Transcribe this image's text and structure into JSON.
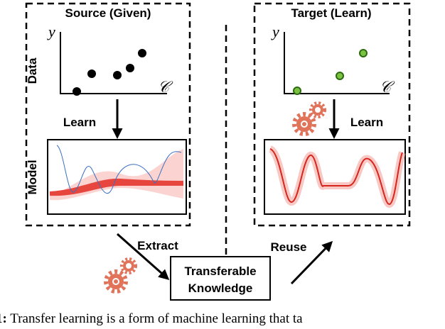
{
  "source": {
    "title": "Source (Given)",
    "y_label": "y",
    "x_label": "𝒞",
    "data_label": "Data",
    "model_label": "Model",
    "step": "Learn"
  },
  "target": {
    "title": "Target (Learn)",
    "y_label": "y",
    "x_label": "𝒞",
    "step": "Learn"
  },
  "extract": "Extract",
  "reuse": "Reuse",
  "knowledge": {
    "line1": "Transferable",
    "line2": "Knowledge"
  },
  "caption": {
    "label": "1:",
    "text": "Transfer learning is a form of machine learning that ta"
  }
}
